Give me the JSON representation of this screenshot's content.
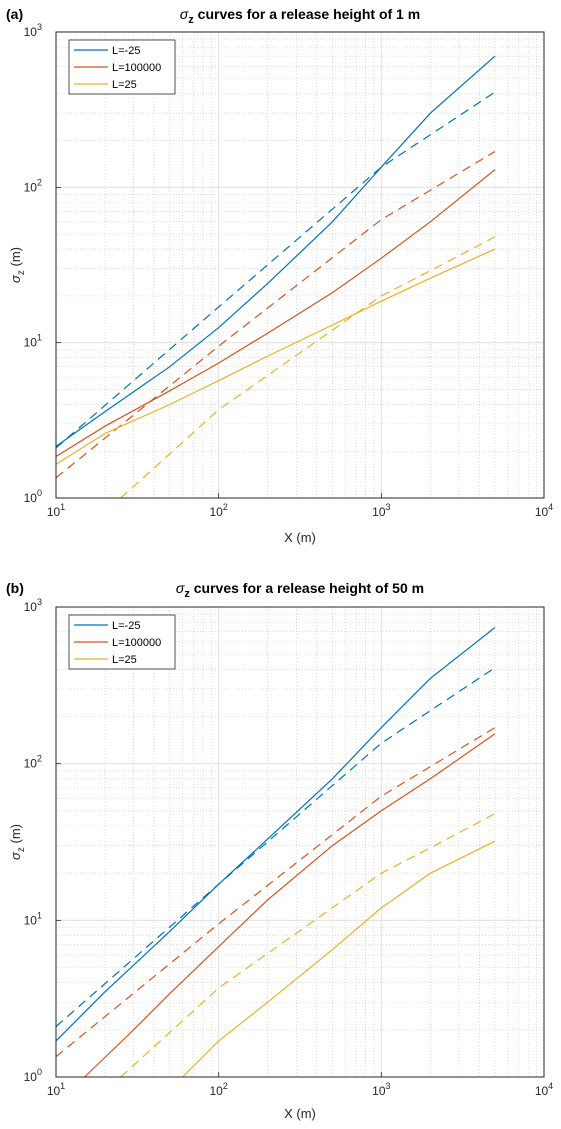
{
  "chart_data": [
    {
      "panel_label": "(a)",
      "type": "line",
      "title": "σz curves for a release height of 1 m",
      "title_parts": {
        "sigma": "σ",
        "sub": "z",
        "rest": " curves for a release height of 1 m"
      },
      "xlabel": "X (m)",
      "ylabel": "σz (m)",
      "ylabel_parts": {
        "sigma": "σ",
        "sub": "z",
        "rest": " (m)"
      },
      "xscale": "log",
      "yscale": "log",
      "xlim": [
        10,
        10000
      ],
      "ylim": [
        1,
        1000
      ],
      "xticks": [
        "10^1",
        "10^2",
        "10^3",
        "10^4"
      ],
      "yticks": [
        "10^0",
        "10^1",
        "10^2",
        "10^3"
      ],
      "grid": true,
      "minor_grid": true,
      "legend": {
        "position": "top-left",
        "entries": [
          "L=-25",
          "L=100000",
          "L=25"
        ]
      },
      "series": [
        {
          "name": "L=-25",
          "style": "solid",
          "color": "#0072BD",
          "points": [
            [
              10,
              2.15
            ],
            [
              20,
              3.6
            ],
            [
              50,
              7.0
            ],
            [
              100,
              12.5
            ],
            [
              200,
              24
            ],
            [
              500,
              60
            ],
            [
              1000,
              135
            ],
            [
              2000,
              300
            ],
            [
              5000,
              700
            ]
          ]
        },
        {
          "style": "dashed",
          "color": "#0072BD",
          "points": [
            [
              10,
              2.1
            ],
            [
              100,
              17
            ],
            [
              1000,
              135
            ],
            [
              5000,
              410
            ]
          ]
        },
        {
          "name": "L=100000",
          "style": "solid",
          "color": "#D95319",
          "points": [
            [
              10,
              1.85
            ],
            [
              20,
              2.9
            ],
            [
              50,
              4.9
            ],
            [
              100,
              7.4
            ],
            [
              200,
              11.5
            ],
            [
              500,
              21
            ],
            [
              1000,
              35
            ],
            [
              2000,
              60
            ],
            [
              5000,
              130
            ]
          ]
        },
        {
          "style": "dashed",
          "color": "#D95319",
          "points": [
            [
              10,
              1.35
            ],
            [
              100,
              9.5
            ],
            [
              1000,
              62
            ],
            [
              5000,
              170
            ]
          ]
        },
        {
          "name": "L=25",
          "style": "solid",
          "color": "#EDB120",
          "points": [
            [
              10,
              1.65
            ],
            [
              20,
              2.6
            ],
            [
              50,
              4.0
            ],
            [
              100,
              5.7
            ],
            [
              200,
              8.2
            ],
            [
              500,
              13
            ],
            [
              1000,
              18.5
            ],
            [
              2000,
              26
            ],
            [
              5000,
              40
            ]
          ]
        },
        {
          "style": "dashed",
          "color": "#EDB120",
          "points": [
            [
              25,
              1.0
            ],
            [
              100,
              3.7
            ],
            [
              1000,
              20
            ],
            [
              2000,
              29
            ],
            [
              5000,
              48
            ]
          ]
        }
      ]
    },
    {
      "panel_label": "(b)",
      "type": "line",
      "title": "σz curves for a release height of 50 m",
      "title_parts": {
        "sigma": "σ",
        "sub": "z",
        "rest": " curves for a release height of 50 m"
      },
      "xlabel": "X (m)",
      "ylabel": "σz (m)",
      "ylabel_parts": {
        "sigma": "σ",
        "sub": "z",
        "rest": " (m)"
      },
      "xscale": "log",
      "yscale": "log",
      "xlim": [
        10,
        10000
      ],
      "ylim": [
        1,
        1000
      ],
      "xticks": [
        "10^1",
        "10^2",
        "10^3",
        "10^4"
      ],
      "yticks": [
        "10^0",
        "10^1",
        "10^2",
        "10^3"
      ],
      "grid": true,
      "minor_grid": true,
      "legend": {
        "position": "top-left",
        "entries": [
          "L=-25",
          "L=100000",
          "L=25"
        ]
      },
      "series": [
        {
          "name": "L=-25",
          "style": "solid",
          "color": "#0072BD",
          "points": [
            [
              10,
              1.7
            ],
            [
              20,
              3.5
            ],
            [
              50,
              8.5
            ],
            [
              100,
              17
            ],
            [
              200,
              33
            ],
            [
              500,
              80
            ],
            [
              1000,
              170
            ],
            [
              2000,
              350
            ],
            [
              5000,
              740
            ]
          ]
        },
        {
          "style": "dashed",
          "color": "#0072BD",
          "points": [
            [
              10,
              2.1
            ],
            [
              100,
              17
            ],
            [
              1000,
              135
            ],
            [
              5000,
              410
            ]
          ]
        },
        {
          "name": "L=100000",
          "style": "solid",
          "color": "#D95319",
          "points": [
            [
              15,
              1.0
            ],
            [
              30,
              2.0
            ],
            [
              50,
              3.4
            ],
            [
              100,
              6.8
            ],
            [
              200,
              13.5
            ],
            [
              500,
              30
            ],
            [
              1000,
              50
            ],
            [
              2000,
              80
            ],
            [
              5000,
              155
            ]
          ]
        },
        {
          "style": "dashed",
          "color": "#D95319",
          "points": [
            [
              10,
              1.35
            ],
            [
              100,
              9.5
            ],
            [
              1000,
              62
            ],
            [
              5000,
              170
            ]
          ]
        },
        {
          "name": "L=25",
          "style": "solid",
          "color": "#EDB120",
          "points": [
            [
              60,
              1.0
            ],
            [
              100,
              1.7
            ],
            [
              200,
              3.0
            ],
            [
              500,
              6.5
            ],
            [
              1000,
              12
            ],
            [
              2000,
              20
            ],
            [
              5000,
              32
            ]
          ]
        },
        {
          "style": "dashed",
          "color": "#EDB120",
          "points": [
            [
              25,
              1.0
            ],
            [
              100,
              3.7
            ],
            [
              1000,
              20
            ],
            [
              2000,
              29
            ],
            [
              5000,
              48
            ]
          ]
        }
      ]
    }
  ]
}
